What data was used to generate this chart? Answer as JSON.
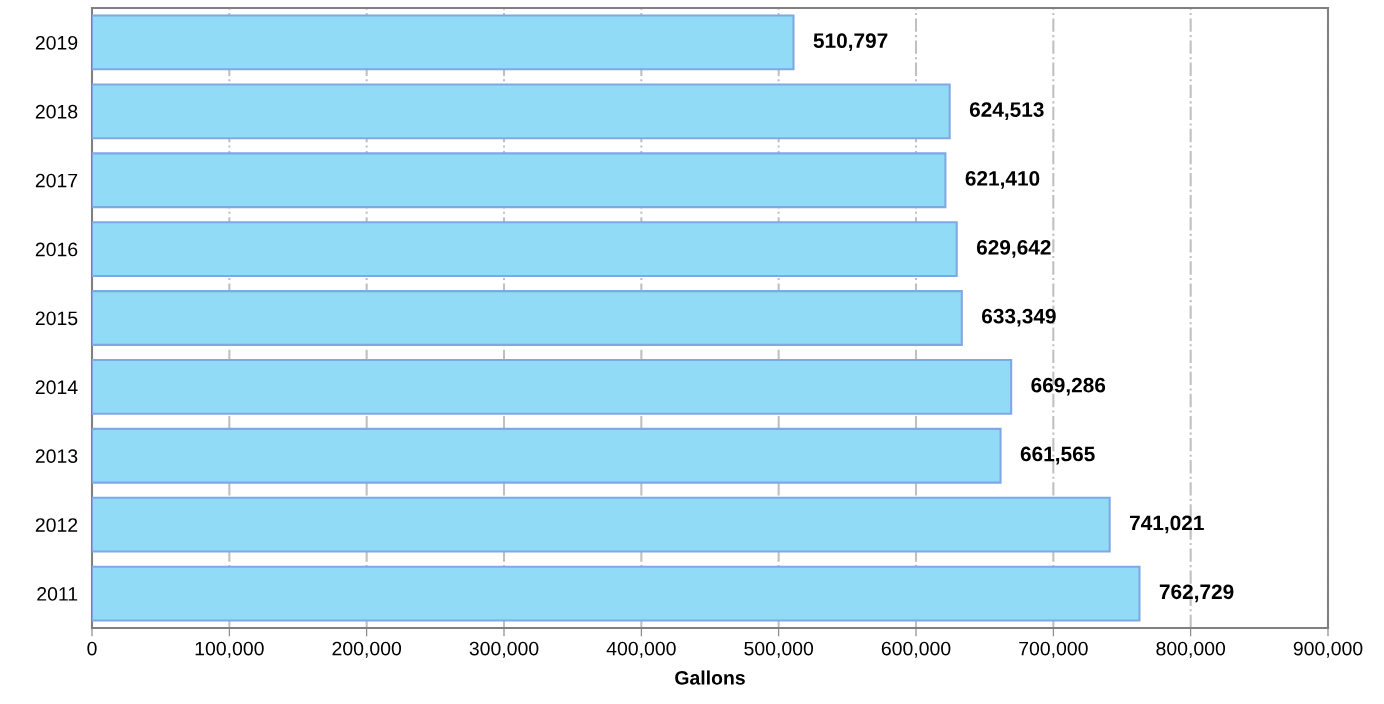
{
  "chart_data": {
    "type": "bar",
    "orientation": "horizontal",
    "xlabel": "Gallons",
    "categories": [
      "2019",
      "2018",
      "2017",
      "2016",
      "2015",
      "2014",
      "2013",
      "2012",
      "2011"
    ],
    "values": [
      510797,
      624513,
      621410,
      629642,
      633349,
      669286,
      661565,
      741021,
      762729
    ],
    "value_labels": [
      "510,797",
      "624,513",
      "621,410",
      "629,642",
      "633,349",
      "669,286",
      "661,565",
      "741,021",
      "762,729"
    ],
    "color": "#91dbf7",
    "xlim": [
      0,
      900000
    ],
    "xticks": [
      0,
      {
        "value": 100000,
        "label": "100,000"
      },
      {
        "value": 200000,
        "label": "200,000"
      },
      {
        "value": 300000,
        "label": "300,000"
      },
      {
        "value": 400000,
        "label": "400,000"
      },
      {
        "value": 500000,
        "label": "500,000"
      },
      {
        "value": 600000,
        "label": "600,000"
      },
      {
        "value": 700000,
        "label": "700,000"
      },
      {
        "value": 800000,
        "label": "800,000"
      },
      {
        "value": 900000,
        "label": "900,000"
      }
    ],
    "grid": "x",
    "legend": false
  }
}
